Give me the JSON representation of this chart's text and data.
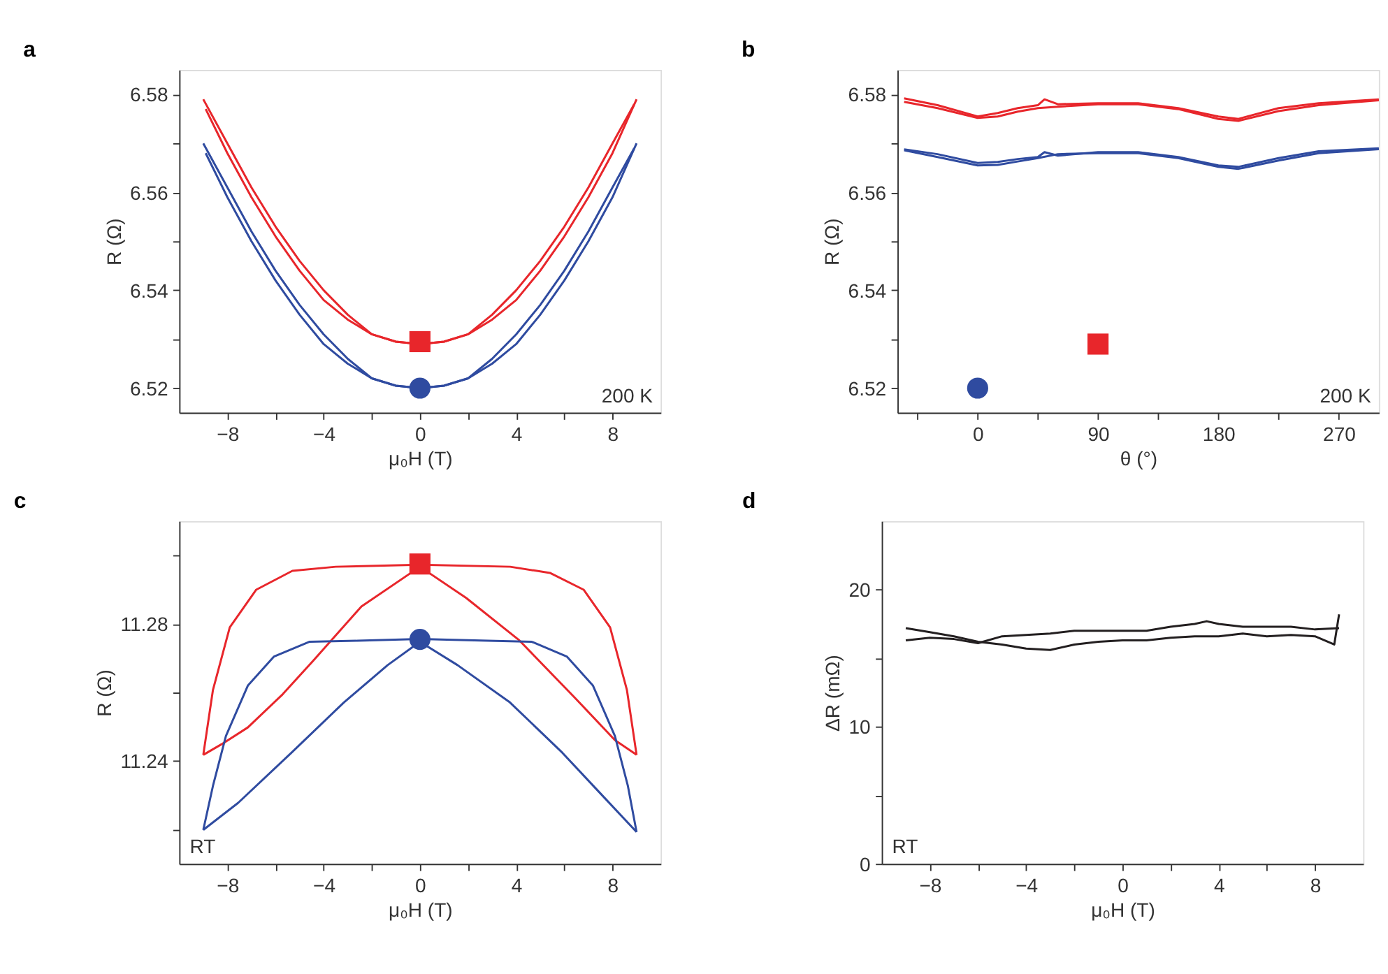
{
  "chart_data": [
    {
      "type": "line",
      "title": "a",
      "xlabel": "μ₀H (T)",
      "ylabel": "R (Ω)",
      "annotations": [
        "200 K"
      ],
      "xlim": [
        -10,
        10
      ],
      "xticks": [
        -8,
        {
          "value": -6,
          "label": null
        },
        -4,
        {
          "value": -2,
          "label": null
        },
        0,
        {
          "value": 2,
          "label": null
        },
        4,
        {
          "value": 6,
          "label": null
        },
        8
      ],
      "ylim": [
        6.515,
        6.585
      ],
      "yticks": [
        6.52,
        {
          "value": 6.53,
          "label": null
        },
        6.54,
        {
          "value": 6.55,
          "label": null
        },
        6.56,
        {
          "value": 6.57,
          "label": null
        },
        6.58
      ],
      "series": [
        {
          "color": "#e8262b",
          "x": [
            -9,
            -8,
            -7,
            -6,
            -5,
            -4,
            -3,
            -2,
            -1,
            0,
            1,
            2,
            3,
            4,
            5,
            6,
            7,
            8,
            9
          ],
          "values": [
            6.579,
            6.57,
            6.561,
            6.553,
            6.546,
            6.54,
            6.535,
            6.531,
            6.5295,
            6.529,
            6.5295,
            6.531,
            6.534,
            6.538,
            6.544,
            6.551,
            6.559,
            6.568,
            6.579
          ]
        },
        {
          "color": "#e8262b",
          "x": [
            -8.9,
            -8,
            -7,
            -6,
            -5,
            -4,
            -3,
            -2,
            -1,
            0,
            1,
            2,
            3,
            4,
            5,
            6,
            7,
            8,
            8.9
          ],
          "values": [
            6.577,
            6.568,
            6.559,
            6.551,
            6.544,
            6.538,
            6.534,
            6.531,
            6.5295,
            6.529,
            6.5295,
            6.531,
            6.535,
            6.54,
            6.546,
            6.553,
            6.561,
            6.57,
            6.578
          ]
        },
        {
          "color": "#2f4ba0",
          "x": [
            -9,
            -8,
            -7,
            -6,
            -5,
            -4,
            -3,
            -2,
            -1,
            0,
            1,
            2,
            3,
            4,
            5,
            6,
            7,
            8,
            9
          ],
          "values": [
            6.57,
            6.561,
            6.552,
            6.544,
            6.537,
            6.531,
            6.526,
            6.522,
            6.5205,
            6.52,
            6.5205,
            6.522,
            6.525,
            6.529,
            6.535,
            6.542,
            6.55,
            6.559,
            6.57
          ]
        },
        {
          "color": "#2f4ba0",
          "x": [
            -8.9,
            -8,
            -7,
            -6,
            -5,
            -4,
            -3,
            -2,
            -1,
            0,
            1,
            2,
            3,
            4,
            5,
            6,
            7,
            8,
            8.9
          ],
          "values": [
            6.568,
            6.559,
            6.55,
            6.542,
            6.535,
            6.529,
            6.525,
            6.522,
            6.5205,
            6.52,
            6.5205,
            6.522,
            6.526,
            6.531,
            6.537,
            6.544,
            6.552,
            6.561,
            6.569
          ]
        },
        {
          "type": "scatter",
          "marker": "square",
          "color": "#e8262b",
          "x": [
            0
          ],
          "values": [
            6.5295
          ]
        },
        {
          "type": "scatter",
          "marker": "circle",
          "color": "#2f4ba0",
          "x": [
            0
          ],
          "values": [
            6.52
          ]
        }
      ]
    },
    {
      "type": "line",
      "title": "b",
      "xlabel": "θ (°)",
      "ylabel": "R (Ω)",
      "annotations": [
        "200 K"
      ],
      "xlim": [
        -60,
        300
      ],
      "xticks": [
        {
          "value": -45,
          "label": null
        },
        0,
        {
          "value": 45,
          "label": null
        },
        90,
        {
          "value": 135,
          "label": null
        },
        180,
        {
          "value": 225,
          "label": null
        },
        270
      ],
      "ylim": [
        6.515,
        6.585
      ],
      "yticks": [
        6.52,
        {
          "value": 6.53,
          "label": null
        },
        6.54,
        {
          "value": 6.55,
          "label": null
        },
        6.56,
        {
          "value": 6.57,
          "label": null
        },
        6.58
      ],
      "series": [
        {
          "color": "#e8262b",
          "x": [
            -55,
            -30,
            0,
            15,
            30,
            45,
            50,
            60,
            90,
            120,
            150,
            180,
            195,
            225,
            255,
            300
          ],
          "values": [
            6.5792,
            6.5778,
            6.5755,
            6.5762,
            6.5772,
            6.5778,
            6.579,
            6.578,
            6.5782,
            6.5782,
            6.5772,
            6.5755,
            6.575,
            6.5772,
            6.5782,
            6.579
          ]
        },
        {
          "color": "#e8262b",
          "x": [
            -55,
            -30,
            0,
            15,
            30,
            45,
            60,
            90,
            120,
            150,
            180,
            195,
            225,
            255,
            300
          ],
          "values": [
            6.5785,
            6.5772,
            6.5752,
            6.5755,
            6.5765,
            6.5772,
            6.5775,
            6.578,
            6.578,
            6.577,
            6.575,
            6.5746,
            6.5766,
            6.5778,
            6.5788
          ]
        },
        {
          "color": "#2f4ba0",
          "x": [
            -55,
            -30,
            0,
            15,
            30,
            45,
            50,
            60,
            90,
            120,
            150,
            180,
            195,
            225,
            255,
            300
          ],
          "values": [
            6.5688,
            6.5678,
            6.566,
            6.5662,
            6.5668,
            6.5672,
            6.5682,
            6.5675,
            6.5682,
            6.5682,
            6.5672,
            6.5655,
            6.5652,
            6.567,
            6.5684,
            6.569
          ]
        },
        {
          "color": "#2f4ba0",
          "x": [
            -55,
            -30,
            0,
            15,
            30,
            45,
            60,
            90,
            120,
            150,
            180,
            195,
            225,
            255,
            300
          ],
          "values": [
            6.5686,
            6.5672,
            6.5655,
            6.5656,
            6.5663,
            6.567,
            6.5678,
            6.568,
            6.568,
            6.567,
            6.5652,
            6.5648,
            6.5665,
            6.568,
            6.5688
          ]
        },
        {
          "type": "scatter",
          "marker": "circle",
          "color": "#2f4ba0",
          "x": [
            0
          ],
          "values": [
            6.52
          ]
        },
        {
          "type": "scatter",
          "marker": "square",
          "color": "#e8262b",
          "x": [
            90
          ],
          "values": [
            6.529
          ]
        }
      ]
    },
    {
      "type": "line",
      "title": "c",
      "xlabel": "μ₀H (T)",
      "ylabel": "R (Ω)",
      "annotations": [
        "RT"
      ],
      "xlim": [
        -10,
        10
      ],
      "xticks": [
        -8,
        {
          "value": -6,
          "label": null
        },
        -4,
        {
          "value": -2,
          "label": null
        },
        0,
        {
          "value": 2,
          "label": null
        },
        4,
        {
          "value": 6,
          "label": null
        },
        8
      ],
      "ylim": [
        11.21,
        11.31
      ],
      "yticks": [
        {
          "value": 11.22,
          "label": null
        },
        11.24,
        {
          "value": 11.26,
          "label": null
        },
        11.28,
        {
          "value": 11.3,
          "label": null
        }
      ],
      "series": [
        {
          "color": "#e8262b",
          "x": [
            -9,
            -8.6,
            -7.9,
            -6.8,
            -5.3,
            -3.5,
            0,
            3.75,
            5.4,
            6.8,
            7.9,
            8.6,
            9
          ],
          "values": [
            11.2418,
            11.2607,
            11.279,
            11.29,
            11.2955,
            11.2967,
            11.2973,
            11.2967,
            11.2949,
            11.29,
            11.279,
            11.2607,
            11.2418
          ]
        },
        {
          "color": "#e8262b",
          "x": [
            -9,
            -8.24,
            -7.15,
            -5.7,
            -4.43,
            -2.43,
            0,
            1.92,
            4.1,
            6.46,
            8.1,
            9
          ],
          "values": [
            11.2418,
            11.2449,
            11.2498,
            11.2595,
            11.2693,
            11.2851,
            11.2967,
            11.2876,
            11.2754,
            11.2583,
            11.2461,
            11.2418
          ]
        },
        {
          "color": "#2f4ba0",
          "x": [
            -9,
            -8.6,
            -8.06,
            -7.15,
            -6.06,
            -4.6,
            -2.6,
            0,
            2.83,
            4.65,
            6.1,
            7.19,
            8.1,
            8.64,
            9
          ],
          "values": [
            11.2199,
            11.2327,
            11.2473,
            11.262,
            11.2705,
            11.2748,
            11.2751,
            11.2756,
            11.2751,
            11.2748,
            11.2705,
            11.262,
            11.2473,
            11.2327,
            11.2193
          ]
        },
        {
          "color": "#2f4ba0",
          "x": [
            -9,
            -7.55,
            -5.34,
            -3.16,
            -1.34,
            0,
            1.56,
            3.74,
            5.92,
            7.37,
            9
          ],
          "values": [
            11.2199,
            11.2278,
            11.2424,
            11.2571,
            11.268,
            11.2748,
            11.268,
            11.2571,
            11.2424,
            11.2315,
            11.2193
          ]
        },
        {
          "type": "scatter",
          "marker": "square",
          "color": "#e8262b",
          "x": [
            0
          ],
          "values": [
            11.2975
          ]
        },
        {
          "type": "scatter",
          "marker": "circle",
          "color": "#2f4ba0",
          "x": [
            0
          ],
          "values": [
            11.2755
          ]
        }
      ]
    },
    {
      "type": "line",
      "title": "d",
      "xlabel": "μ₀H (T)",
      "ylabel": "ΔR (mΩ)",
      "annotations": [
        "RT"
      ],
      "xlim": [
        -10,
        10
      ],
      "xticks": [
        -8,
        {
          "value": -6,
          "label": null
        },
        -4,
        {
          "value": -2,
          "label": null
        },
        0,
        {
          "value": 2,
          "label": null
        },
        4,
        {
          "value": 6,
          "label": null
        },
        8
      ],
      "ylim": [
        0,
        25
      ],
      "yticks": [
        0,
        {
          "value": 5,
          "label": null
        },
        10,
        {
          "value": 15,
          "label": null
        },
        20
      ],
      "series": [
        {
          "color": "#231f20",
          "x": [
            -9,
            -8,
            -7,
            -6,
            -5,
            -4,
            -3,
            -2,
            -1,
            0,
            1,
            2,
            3,
            3.5,
            4,
            5,
            6,
            7,
            8,
            9
          ],
          "values": [
            16.3,
            16.5,
            16.4,
            16.1,
            16.6,
            16.7,
            16.8,
            17.0,
            17.0,
            17.0,
            17.0,
            17.3,
            17.5,
            17.7,
            17.5,
            17.3,
            17.3,
            17.3,
            17.1,
            17.2
          ]
        },
        {
          "color": "#231f20",
          "x": [
            -9,
            -8,
            -7,
            -6,
            -5,
            -4,
            -3,
            -2,
            -1,
            0,
            1,
            2,
            3,
            4,
            5,
            6,
            7,
            8,
            8.8,
            9
          ],
          "values": [
            17.2,
            16.9,
            16.6,
            16.2,
            16.0,
            15.7,
            15.6,
            16.0,
            16.2,
            16.3,
            16.3,
            16.5,
            16.6,
            16.6,
            16.8,
            16.6,
            16.7,
            16.6,
            16.0,
            18.2
          ]
        }
      ]
    }
  ]
}
